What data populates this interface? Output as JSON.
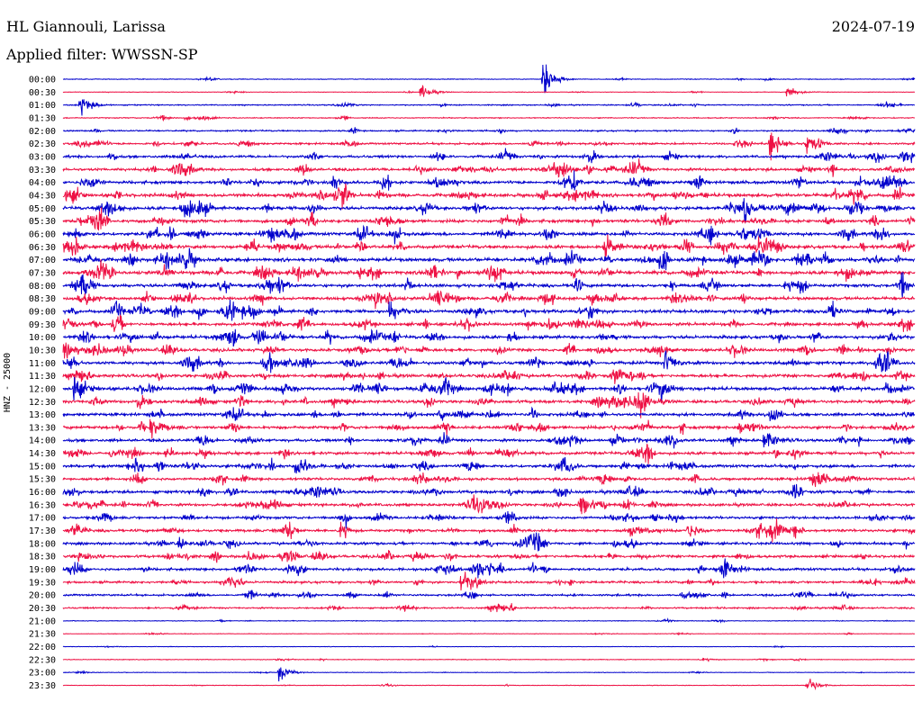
{
  "header": {
    "station": "HL Giannouli, Larissa",
    "date": "2024-07-19",
    "filter_label": "Applied filter: WWSSN-SP"
  },
  "chart_data": {
    "type": "line",
    "title": "HL Giannouli, Larissa",
    "date": "2024-07-19",
    "filter": "WWSSN-SP",
    "ylabel": "HNZ - 25000",
    "row_labels": [
      "00:00",
      "00:30",
      "01:00",
      "01:30",
      "02:00",
      "02:30",
      "03:00",
      "03:30",
      "04:00",
      "04:30",
      "05:00",
      "05:30",
      "06:00",
      "06:30",
      "07:00",
      "07:30",
      "08:00",
      "08:30",
      "09:00",
      "09:30",
      "10:00",
      "10:30",
      "11:00",
      "11:30",
      "12:00",
      "12:30",
      "13:00",
      "13:30",
      "14:00",
      "14:30",
      "15:00",
      "15:30",
      "16:00",
      "16:30",
      "17:00",
      "17:30",
      "18:00",
      "18:30",
      "19:00",
      "19:30",
      "20:00",
      "20:30",
      "21:00",
      "21:30",
      "22:00",
      "22:30",
      "23:00",
      "23:30"
    ],
    "row_minutes": 30,
    "colors": [
      "#0000cc",
      "#ee1144"
    ],
    "noise_level": [
      0.5,
      0.4,
      0.8,
      0.7,
      1.0,
      1.4,
      1.7,
      1.9,
      2.1,
      2.3,
      2.2,
      2.2,
      2.2,
      2.3,
      2.4,
      2.4,
      2.2,
      2.1,
      2.2,
      2.1,
      2.2,
      2.1,
      2.1,
      2.2,
      2.2,
      2.1,
      2.1,
      2.1,
      2.0,
      2.0,
      2.0,
      1.9,
      2.0,
      1.9,
      1.8,
      1.9,
      1.8,
      1.9,
      1.8,
      1.6,
      1.4,
      1.1,
      0.5,
      0.4,
      0.3,
      0.5,
      0.4,
      0.4
    ],
    "events": [
      {
        "row": 0,
        "minute": 16.9,
        "amp": 22
      },
      {
        "row": 1,
        "minute": 12.6,
        "amp": 9
      },
      {
        "row": 1,
        "minute": 25.5,
        "amp": 7
      },
      {
        "row": 2,
        "minute": 0.6,
        "amp": 12
      },
      {
        "row": 5,
        "minute": 24.9,
        "amp": 18
      },
      {
        "row": 5,
        "minute": 26.2,
        "amp": 14
      },
      {
        "row": 7,
        "minute": 17.3,
        "amp": 13
      },
      {
        "row": 10,
        "minute": 24.0,
        "amp": 15
      },
      {
        "row": 13,
        "minute": 19.1,
        "amp": 12
      },
      {
        "row": 15,
        "minute": 27.6,
        "amp": 10
      },
      {
        "row": 17,
        "minute": 11.0,
        "amp": 10
      },
      {
        "row": 18,
        "minute": 11.5,
        "amp": 11
      },
      {
        "row": 22,
        "minute": 21.2,
        "amp": 14
      },
      {
        "row": 24,
        "minute": 0.4,
        "amp": 16
      },
      {
        "row": 24,
        "minute": 21.0,
        "amp": 12
      },
      {
        "row": 25,
        "minute": 20.3,
        "amp": 12
      },
      {
        "row": 27,
        "minute": 3.1,
        "amp": 14
      },
      {
        "row": 28,
        "minute": 24.7,
        "amp": 14
      },
      {
        "row": 30,
        "minute": 8.2,
        "amp": 11
      },
      {
        "row": 33,
        "minute": 18.2,
        "amp": 16
      },
      {
        "row": 35,
        "minute": 22.0,
        "amp": 10
      },
      {
        "row": 38,
        "minute": 14.6,
        "amp": 10
      },
      {
        "row": 39,
        "minute": 14.0,
        "amp": 12
      },
      {
        "row": 46,
        "minute": 7.6,
        "amp": 10
      },
      {
        "row": 47,
        "minute": 26.2,
        "amp": 10
      }
    ]
  }
}
